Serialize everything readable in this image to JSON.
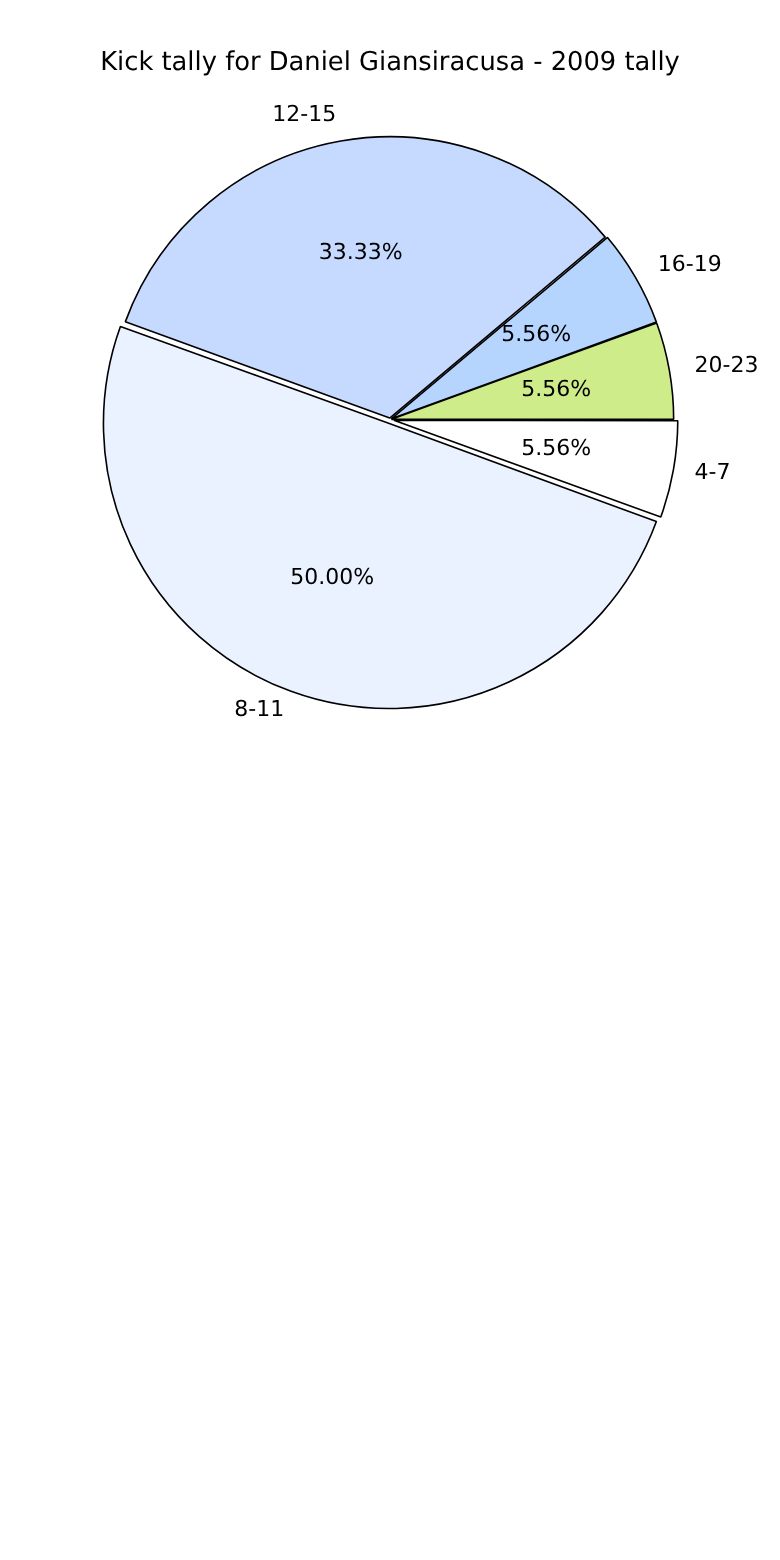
{
  "chart_data": {
    "type": "pie",
    "title": "Kick tally for Daniel Giansiracusa - 2009 tally",
    "categories": [
      "4-7",
      "8-11",
      "12-15",
      "16-19",
      "20-23"
    ],
    "values": [
      5.56,
      50,
      33.33,
      5.56,
      5.56
    ],
    "value_labels": [
      "5.56%",
      "50.00%",
      "33.33%",
      "5.56%",
      "5.56%"
    ],
    "colors": [
      "#ffffff",
      "#eaf2ff",
      "#c6daff",
      "#b5d5ff",
      "#cfec8a"
    ]
  }
}
